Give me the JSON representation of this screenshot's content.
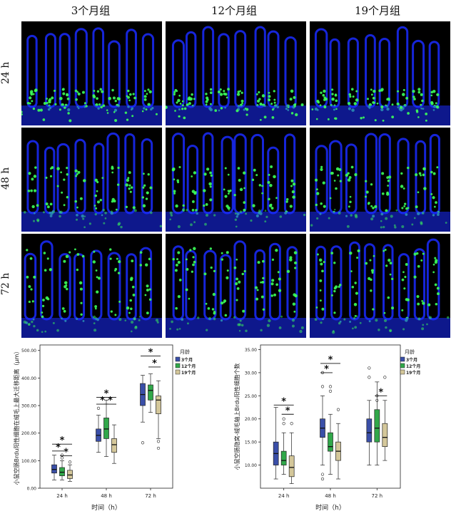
{
  "figure": {
    "column_labels": [
      "3个月组",
      "12个月组",
      "19个月组"
    ],
    "row_labels": [
      "24 h",
      "48 h",
      "72 h"
    ]
  },
  "colors": {
    "series": [
      "#3a4fa8",
      "#31a84a",
      "#d4c79a"
    ],
    "nuclei": "#1a2cff",
    "brdu": "#3cff5a"
  },
  "chart_data": [
    {
      "type": "box",
      "ylabel": "小鼠空肠Brdu阳性细胞在绒毛上最大迁移距离（μm）",
      "xlabel": "时间（h）",
      "categories": [
        "24 h",
        "48 h",
        "72 h"
      ],
      "yticks": [
        "0.00",
        "100.00",
        "200.00",
        "300.00",
        "400.00",
        "500.00"
      ],
      "ylim": [
        0,
        520
      ],
      "legend_title": "月龄",
      "legend": [
        "3个月",
        "12个月",
        "19个月"
      ],
      "series": [
        {
          "name": "3个月",
          "boxes": [
            {
              "min": 30,
              "q1": 55,
              "median": 68,
              "q3": 85,
              "max": 120,
              "outliers": []
            },
            {
              "min": 130,
              "q1": 170,
              "median": 192,
              "q3": 215,
              "max": 265,
              "outliers": [
                290
              ]
            },
            {
              "min": 240,
              "q1": 300,
              "median": 340,
              "q3": 380,
              "max": 410,
              "outliers": [
                165
              ]
            }
          ]
        },
        {
          "name": "12个月",
          "boxes": [
            {
              "min": 30,
              "q1": 45,
              "median": 58,
              "q3": 75,
              "max": 100,
              "outliers": [
                120,
                110
              ]
            },
            {
              "min": 115,
              "q1": 180,
              "median": 215,
              "q3": 255,
              "max": 320,
              "outliers": []
            },
            {
              "min": 275,
              "q1": 320,
              "median": 355,
              "q3": 375,
              "max": 415,
              "outliers": []
            }
          ]
        },
        {
          "name": "19个月",
          "boxes": [
            {
              "min": 25,
              "q1": 35,
              "median": 48,
              "q3": 65,
              "max": 85,
              "outliers": [
                95
              ]
            },
            {
              "min": 90,
              "q1": 130,
              "median": 158,
              "q3": 180,
              "max": 230,
              "outliers": []
            },
            {
              "min": 180,
              "q1": 270,
              "median": 320,
              "q3": 335,
              "max": 390,
              "outliers": [
                170,
                145
              ]
            }
          ]
        }
      ],
      "significance": [
        {
          "group": 0,
          "from": 0,
          "to": 2,
          "level": 160
        },
        {
          "group": 0,
          "from": 0,
          "to": 1,
          "level": 135
        },
        {
          "group": 0,
          "from": 1,
          "to": 2,
          "level": 118
        },
        {
          "group": 1,
          "from": 0,
          "to": 2,
          "level": 330
        },
        {
          "group": 1,
          "from": 0,
          "to": 1,
          "level": 305
        },
        {
          "group": 1,
          "from": 1,
          "to": 2,
          "level": 305
        },
        {
          "group": 2,
          "from": 0,
          "to": 2,
          "level": 480
        },
        {
          "group": 2,
          "from": 1,
          "to": 2,
          "level": 440
        }
      ],
      "star": "*"
    },
    {
      "type": "box",
      "ylabel": "小鼠空肠隐窝-绒毛轴上Brdu阳性细胞个数",
      "xlabel": "时间（h）",
      "categories": [
        "24 h",
        "48 h",
        "72 h"
      ],
      "yticks": [
        "10.00",
        "15.00",
        "20.00",
        "25.00",
        "30.00",
        "35.00"
      ],
      "ylim": [
        5,
        36
      ],
      "legend_title": "月龄",
      "legend": [
        "3个月",
        "12个月",
        "19个月"
      ],
      "series": [
        {
          "name": "3个月",
          "boxes": [
            {
              "min": 7,
              "q1": 10,
              "median": 12.5,
              "q3": 15,
              "max": 22.5,
              "outliers": []
            },
            {
              "min": 10,
              "q1": 16,
              "median": 18,
              "q3": 20,
              "max": 25,
              "outliers": [
                30,
                27,
                8,
                7
              ]
            },
            {
              "min": 10,
              "q1": 15,
              "median": 17,
              "q3": 20,
              "max": 24,
              "outliers": [
                31,
                29
              ]
            }
          ]
        },
        {
          "name": "12个月",
          "boxes": [
            {
              "min": 8,
              "q1": 10,
              "median": 11,
              "q3": 13,
              "max": 17,
              "outliers": [
                20,
                19
              ]
            },
            {
              "min": 8,
              "q1": 13,
              "median": 14,
              "q3": 17,
              "max": 21,
              "outliers": [
                27,
                26
              ]
            },
            {
              "min": 10,
              "q1": 15,
              "median": 18,
              "q3": 22,
              "max": 28,
              "outliers": [
                25,
                24
              ]
            }
          ]
        },
        {
          "name": "19个月",
          "boxes": [
            {
              "min": 6,
              "q1": 7.5,
              "median": 9.5,
              "q3": 12,
              "max": 17,
              "outliers": [
                19
              ]
            },
            {
              "min": 7,
              "q1": 11,
              "median": 13,
              "q3": 15,
              "max": 19,
              "outliers": [
                22
              ]
            },
            {
              "min": 11,
              "q1": 14,
              "median": 16,
              "q3": 19,
              "max": 24,
              "outliers": [
                29
              ]
            }
          ]
        }
      ],
      "significance": [
        {
          "group": 0,
          "from": 0,
          "to": 2,
          "level": 23
        },
        {
          "group": 0,
          "from": 1,
          "to": 2,
          "level": 21
        },
        {
          "group": 1,
          "from": 0,
          "to": 2,
          "level": 32
        },
        {
          "group": 1,
          "from": 0,
          "to": 1,
          "level": 30
        },
        {
          "group": 2,
          "from": 1,
          "to": 2,
          "level": 25
        }
      ],
      "star": "*"
    }
  ]
}
